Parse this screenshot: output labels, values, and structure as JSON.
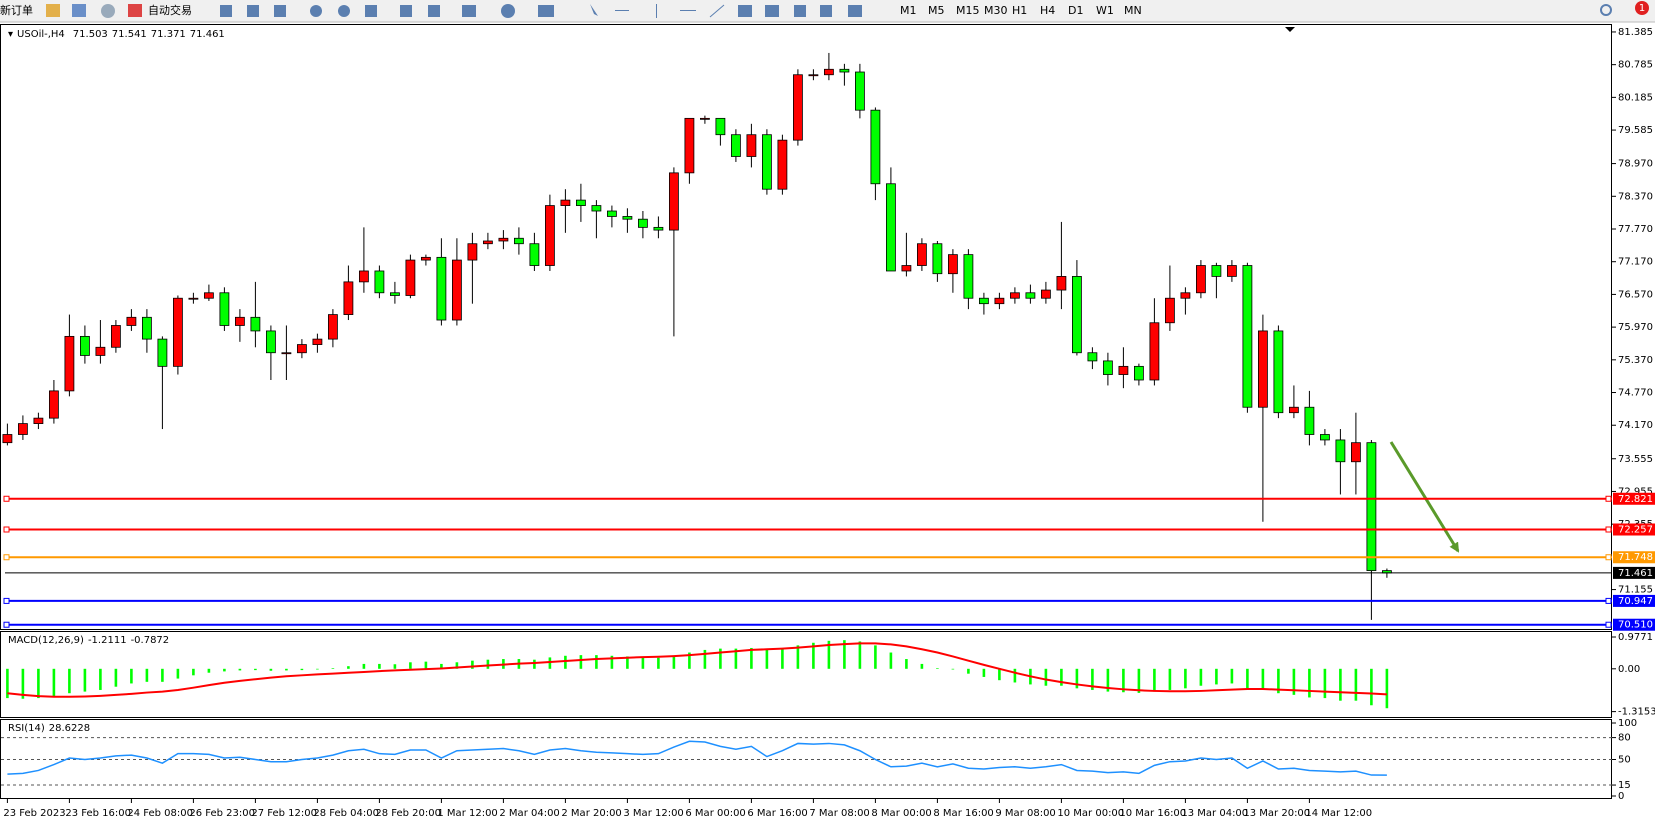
{
  "toolbar": {
    "new_order": "新订单",
    "auto_trading": "自动交易",
    "periods": [
      "M1",
      "M5",
      "M15",
      "M30",
      "H1",
      "H4",
      "D1",
      "W1",
      "MN"
    ],
    "badge": "1"
  },
  "chart_data": [
    {
      "type": "candlestick",
      "title": "USOil-,H4",
      "categories": [
        "23 Feb 2023",
        null,
        null,
        null,
        "23 Feb 16:00",
        null,
        null,
        null,
        "24 Feb 08:00",
        null,
        null,
        null,
        "26 Feb 23:00",
        null,
        null,
        null,
        "27 Feb 12:00",
        null,
        null,
        null,
        "28 Feb 04:00",
        null,
        null,
        null,
        "28 Feb 20:00",
        null,
        null,
        null,
        "1 Mar 12:00",
        null,
        null,
        null,
        "2 Mar 04:00",
        null,
        null,
        null,
        "2 Mar 20:00",
        null,
        null,
        null,
        "3 Mar 12:00",
        null,
        null,
        null,
        "6 Mar 00:00",
        null,
        null,
        null,
        "6 Mar 16:00",
        null,
        null,
        null,
        "7 Mar 08:00",
        null,
        null,
        null,
        "8 Mar 00:00",
        null,
        null,
        null,
        "8 Mar 16:00",
        null,
        null,
        null,
        "9 Mar 08:00",
        null,
        null,
        null,
        "10 Mar 00:00",
        null,
        null,
        null,
        "10 Mar 16:00",
        null,
        null,
        null,
        "13 Mar 04:00",
        null,
        null,
        null,
        "13 Mar 20:00",
        null,
        null,
        null,
        "14 Mar 12:00",
        null,
        null,
        null,
        null,
        null
      ],
      "open": [
        73.85,
        74.0,
        74.2,
        74.3,
        74.8,
        75.8,
        75.45,
        75.6,
        76.0,
        76.15,
        75.75,
        75.25,
        76.5,
        76.5,
        76.6,
        76.0,
        76.15,
        75.9,
        75.5,
        75.5,
        75.65,
        75.75,
        76.2,
        76.8,
        77.0,
        76.6,
        76.55,
        77.2,
        77.25,
        76.1,
        77.2,
        77.5,
        77.55,
        77.6,
        77.5,
        77.1,
        78.2,
        78.3,
        78.2,
        78.1,
        78.0,
        77.95,
        77.8,
        77.75,
        78.8,
        79.8,
        79.8,
        79.5,
        79.1,
        79.5,
        78.5,
        79.4,
        80.6,
        80.6,
        80.7,
        80.65,
        79.95,
        78.6,
        77.0,
        77.1,
        77.5,
        76.95,
        77.3,
        76.5,
        76.4,
        76.5,
        76.6,
        76.5,
        76.65,
        76.9,
        75.5,
        75.35,
        75.1,
        75.25,
        75.0,
        76.05,
        76.5,
        76.6,
        77.1,
        76.9,
        77.1,
        74.5,
        75.9,
        74.4,
        74.5,
        74.0,
        73.9,
        73.5,
        73.85,
        71.503
      ],
      "high": [
        74.2,
        74.35,
        74.4,
        75.0,
        76.2,
        76.0,
        76.1,
        76.1,
        76.3,
        76.3,
        75.8,
        76.55,
        76.6,
        76.75,
        76.7,
        76.3,
        76.8,
        76.0,
        76.0,
        75.75,
        75.85,
        76.3,
        77.1,
        77.8,
        77.1,
        76.8,
        77.3,
        77.3,
        77.6,
        77.6,
        77.7,
        77.7,
        77.75,
        77.8,
        77.7,
        78.4,
        78.5,
        78.6,
        78.3,
        78.2,
        78.15,
        78.1,
        78.0,
        78.9,
        79.8,
        79.85,
        79.8,
        79.6,
        79.7,
        79.6,
        79.5,
        80.7,
        80.7,
        81.0,
        80.8,
        80.8,
        80.0,
        78.9,
        77.7,
        77.6,
        77.55,
        77.4,
        77.4,
        76.6,
        76.6,
        76.7,
        76.75,
        76.8,
        77.9,
        77.2,
        75.6,
        75.5,
        75.6,
        75.3,
        76.5,
        77.1,
        76.7,
        77.2,
        77.15,
        77.2,
        77.15,
        76.2,
        76.0,
        74.9,
        74.8,
        74.1,
        74.1,
        74.4,
        73.9,
        71.541
      ],
      "low": [
        73.8,
        73.9,
        74.1,
        74.2,
        74.7,
        75.3,
        75.3,
        75.5,
        75.9,
        75.5,
        74.1,
        75.1,
        76.4,
        76.45,
        75.9,
        75.7,
        75.6,
        75.0,
        75.0,
        75.4,
        75.5,
        75.6,
        76.1,
        76.6,
        76.5,
        76.4,
        76.5,
        77.1,
        76.0,
        76.0,
        76.4,
        77.4,
        77.4,
        77.3,
        77.0,
        77.0,
        77.7,
        77.9,
        77.6,
        77.8,
        77.7,
        77.6,
        77.6,
        75.8,
        78.6,
        79.7,
        79.3,
        79.0,
        78.9,
        78.4,
        78.4,
        79.3,
        80.5,
        80.5,
        80.4,
        79.8,
        78.3,
        77.0,
        76.9,
        77.0,
        76.8,
        76.6,
        76.3,
        76.2,
        76.3,
        76.4,
        76.4,
        76.4,
        76.3,
        75.45,
        75.2,
        74.9,
        74.85,
        74.9,
        74.9,
        75.9,
        76.2,
        76.5,
        76.5,
        76.8,
        74.4,
        72.4,
        74.3,
        74.3,
        73.8,
        73.8,
        72.9,
        72.9,
        70.6,
        71.371
      ],
      "close": [
        74.0,
        74.2,
        74.3,
        74.8,
        75.8,
        75.45,
        75.6,
        76.0,
        76.15,
        75.75,
        75.25,
        76.5,
        76.5,
        76.6,
        76.0,
        76.15,
        75.9,
        75.5,
        75.5,
        75.65,
        75.75,
        76.2,
        76.8,
        77.0,
        76.6,
        76.55,
        77.2,
        77.25,
        76.1,
        77.2,
        77.5,
        77.55,
        77.6,
        77.5,
        77.1,
        78.2,
        78.3,
        78.2,
        78.1,
        78.0,
        77.95,
        77.8,
        77.75,
        78.8,
        79.8,
        79.8,
        79.5,
        79.1,
        79.5,
        78.5,
        79.4,
        80.6,
        80.6,
        80.7,
        80.65,
        79.95,
        78.6,
        77.0,
        77.1,
        77.5,
        76.95,
        77.3,
        76.5,
        76.4,
        76.5,
        76.6,
        76.5,
        76.65,
        76.9,
        75.5,
        75.35,
        75.1,
        75.25,
        75.0,
        76.05,
        76.5,
        76.6,
        77.1,
        76.9,
        77.1,
        74.5,
        75.9,
        74.4,
        74.5,
        74.0,
        73.9,
        73.5,
        73.85,
        71.503,
        71.461
      ],
      "up_color": "#ff0000",
      "down_color": "#00ff00",
      "ylim": [
        70.45,
        81.43
      ],
      "yticks": [
        81.385,
        80.785,
        80.185,
        79.585,
        {
          "value": 78.97,
          "label": "78.970"
        },
        {
          "value": 78.37,
          "label": "78.370"
        },
        {
          "value": 77.77,
          "label": "77.770"
        },
        {
          "value": 77.17,
          "label": "77.170"
        },
        {
          "value": 76.57,
          "label": "76.570"
        },
        {
          "value": 75.97,
          "label": "75.970"
        },
        {
          "value": 75.37,
          "label": "75.370"
        },
        {
          "value": 74.77,
          "label": "74.770"
        },
        {
          "value": 74.17,
          "label": "74.170"
        },
        73.555,
        72.955,
        72.355,
        71.155
      ],
      "levels": [
        {
          "value": 72.821,
          "color": "#ff0000"
        },
        {
          "value": 72.257,
          "color": "#ff0000"
        },
        {
          "value": 71.748,
          "color": "#ff9900"
        },
        {
          "value": 71.461,
          "color": "#000000"
        },
        {
          "value": 70.947,
          "color": "#0000ff"
        },
        {
          "value": 70.51,
          "label": "70.510",
          "color": "#0000ff"
        }
      ]
    },
    {
      "type": "macd",
      "title": "MACD(12,26,9)",
      "histogram": {
        "color": "#00ff00",
        "values": [
          -0.9,
          -0.92,
          -0.9,
          -0.85,
          -0.75,
          -0.7,
          -0.65,
          -0.55,
          -0.45,
          -0.4,
          -0.4,
          -0.3,
          -0.2,
          -0.12,
          -0.08,
          -0.05,
          -0.04,
          -0.06,
          -0.05,
          -0.04,
          -0.02,
          0.02,
          0.08,
          0.15,
          0.15,
          0.14,
          0.2,
          0.22,
          0.15,
          0.2,
          0.25,
          0.28,
          0.3,
          0.3,
          0.28,
          0.35,
          0.4,
          0.42,
          0.42,
          0.4,
          0.38,
          0.36,
          0.34,
          0.4,
          0.5,
          0.58,
          0.62,
          0.62,
          0.64,
          0.6,
          0.62,
          0.72,
          0.8,
          0.86,
          0.88,
          0.84,
          0.72,
          0.5,
          0.3,
          0.15,
          0.02,
          -0.02,
          -0.15,
          -0.25,
          -0.35,
          -0.42,
          -0.48,
          -0.52,
          -0.52,
          -0.6,
          -0.65,
          -0.7,
          -0.72,
          -0.74,
          -0.7,
          -0.65,
          -0.6,
          -0.52,
          -0.48,
          -0.45,
          -0.6,
          -0.62,
          -0.75,
          -0.8,
          -0.88,
          -0.9,
          -0.98,
          -0.98,
          -1.12,
          -1.2111
        ]
      },
      "signal": {
        "color": "#ff0000",
        "values": [
          -0.75,
          -0.8,
          -0.84,
          -0.86,
          -0.86,
          -0.85,
          -0.83,
          -0.8,
          -0.77,
          -0.73,
          -0.7,
          -0.65,
          -0.58,
          -0.5,
          -0.43,
          -0.37,
          -0.32,
          -0.27,
          -0.23,
          -0.2,
          -0.17,
          -0.15,
          -0.12,
          -0.1,
          -0.07,
          -0.05,
          -0.03,
          -0.01,
          0.01,
          0.04,
          0.07,
          0.1,
          0.13,
          0.16,
          0.18,
          0.21,
          0.24,
          0.27,
          0.3,
          0.32,
          0.34,
          0.36,
          0.37,
          0.39,
          0.42,
          0.46,
          0.5,
          0.54,
          0.58,
          0.6,
          0.62,
          0.65,
          0.69,
          0.73,
          0.76,
          0.78,
          0.78,
          0.75,
          0.69,
          0.6,
          0.5,
          0.38,
          0.25,
          0.12,
          0.0,
          -0.12,
          -0.23,
          -0.33,
          -0.41,
          -0.48,
          -0.54,
          -0.59,
          -0.63,
          -0.66,
          -0.68,
          -0.69,
          -0.69,
          -0.68,
          -0.66,
          -0.64,
          -0.62,
          -0.62,
          -0.64,
          -0.66,
          -0.68,
          -0.7,
          -0.72,
          -0.74,
          -0.76,
          -0.7872
        ]
      },
      "ylim": [
        -1.45,
        1.1
      ],
      "yticks": [
        0.9771,
        {
          "value": 0,
          "label": "0.00"
        },
        -1.3153
      ]
    },
    {
      "type": "line",
      "title": "RSI(14)",
      "color": "#1e90ff",
      "values": [
        30,
        31,
        35,
        43,
        52,
        50,
        52,
        55,
        56,
        52,
        45,
        58,
        58,
        57,
        52,
        53,
        50,
        47,
        47,
        50,
        52,
        56,
        62,
        64,
        58,
        57,
        63,
        63,
        52,
        62,
        63,
        64,
        65,
        62,
        57,
        63,
        65,
        62,
        60,
        59,
        58,
        57,
        58,
        67,
        75,
        74,
        68,
        64,
        68,
        54,
        62,
        72,
        71,
        72,
        70,
        62,
        50,
        40,
        41,
        45,
        40,
        44,
        38,
        37,
        39,
        40,
        38,
        40,
        43,
        35,
        34,
        32,
        33,
        31,
        42,
        47,
        48,
        52,
        50,
        52,
        38,
        48,
        37,
        38,
        35,
        34,
        33,
        34,
        28.7,
        28.6228
      ],
      "ylim": [
        0,
        100
      ],
      "yticks": [
        100,
        80,
        50,
        15,
        0
      ],
      "levels": [
        80,
        50,
        15
      ]
    }
  ]
}
